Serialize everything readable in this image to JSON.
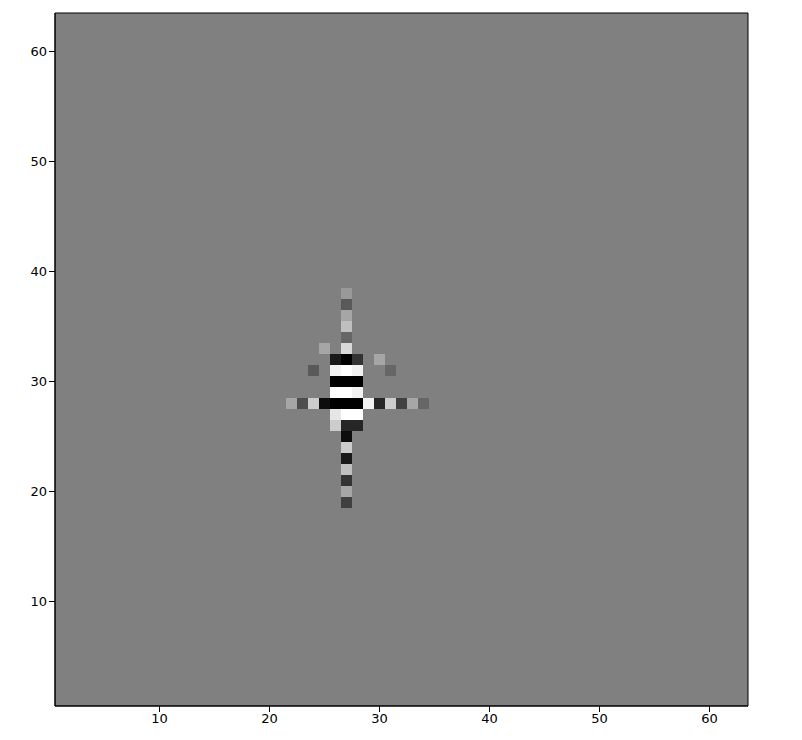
{
  "chart_data": {
    "type": "heatmap",
    "xlim": [
      0.5,
      63.5
    ],
    "ylim": [
      0.5,
      63.5
    ],
    "xticks": [
      10,
      20,
      30,
      40,
      50,
      60
    ],
    "yticks": [
      10,
      20,
      30,
      40,
      50,
      60
    ],
    "color_range": [
      -1,
      1
    ],
    "background": 0,
    "cells": [
      [
        27,
        38,
        0.2
      ],
      [
        27,
        37,
        -0.3
      ],
      [
        27,
        36,
        0.3
      ],
      [
        27,
        35,
        0.5
      ],
      [
        27,
        34,
        -0.2
      ],
      [
        27,
        33,
        0.7
      ],
      [
        27,
        32,
        -1
      ],
      [
        27,
        31,
        1
      ],
      [
        27,
        30,
        -1
      ],
      [
        27,
        29,
        1
      ],
      [
        27,
        28,
        -1
      ],
      [
        27,
        27,
        1
      ],
      [
        27,
        26,
        -0.7
      ],
      [
        27,
        25,
        -0.9
      ],
      [
        27,
        24,
        0.6
      ],
      [
        27,
        23,
        -0.8
      ],
      [
        27,
        22,
        0.5
      ],
      [
        27,
        21,
        -0.6
      ],
      [
        27,
        20,
        0.3
      ],
      [
        27,
        19,
        -0.5
      ],
      [
        26,
        32,
        -0.8
      ],
      [
        28,
        32,
        -0.6
      ],
      [
        26,
        31,
        0.9
      ],
      [
        28,
        31,
        0.9
      ],
      [
        26,
        30,
        -1
      ],
      [
        28,
        30,
        -1
      ],
      [
        26,
        29,
        1
      ],
      [
        28,
        29,
        0.9
      ],
      [
        26,
        28,
        -1
      ],
      [
        28,
        28,
        -1
      ],
      [
        26,
        27,
        0.8
      ],
      [
        28,
        27,
        1
      ],
      [
        26,
        26,
        0.6
      ],
      [
        28,
        26,
        -0.7
      ],
      [
        22,
        28,
        0.3
      ],
      [
        23,
        28,
        -0.4
      ],
      [
        24,
        28,
        0.6
      ],
      [
        25,
        28,
        -0.9
      ],
      [
        29,
        28,
        0.9
      ],
      [
        30,
        28,
        -0.7
      ],
      [
        31,
        28,
        0.6
      ],
      [
        32,
        28,
        -0.5
      ],
      [
        33,
        28,
        0.3
      ],
      [
        34,
        28,
        -0.2
      ],
      [
        25,
        33,
        0.3
      ],
      [
        24,
        31,
        -0.3
      ],
      [
        30,
        32,
        0.3
      ],
      [
        31,
        31,
        -0.2
      ]
    ]
  }
}
